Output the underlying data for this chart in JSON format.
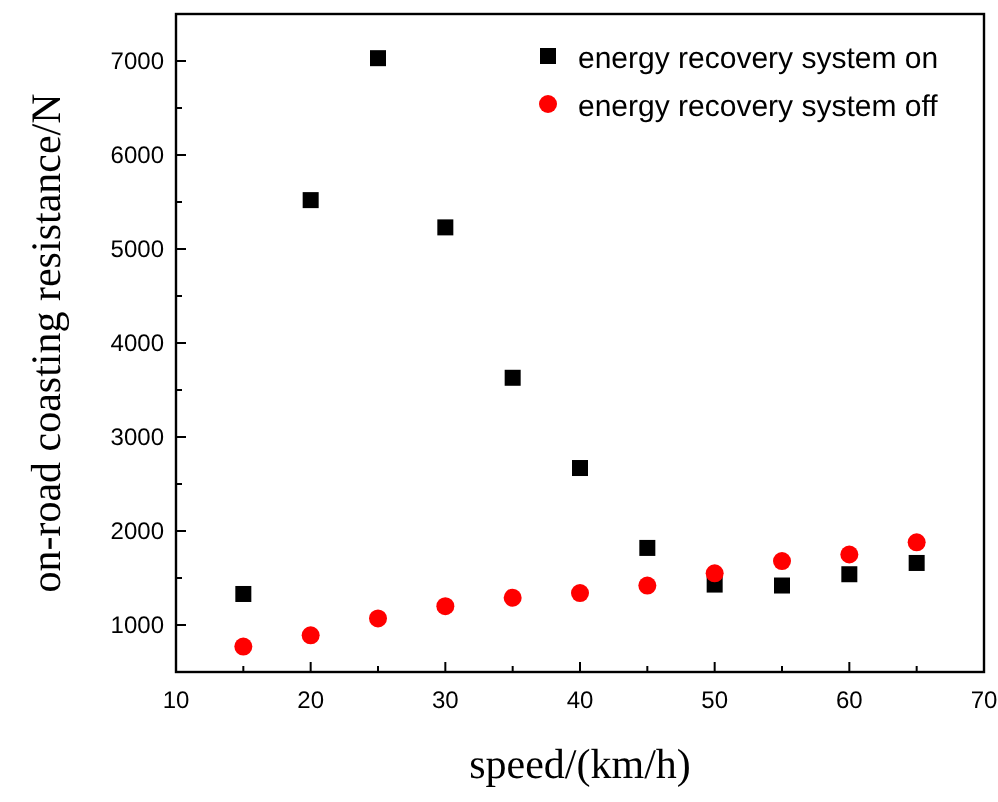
{
  "chart_data": {
    "type": "scatter",
    "xlabel": "speed/(km/h)",
    "ylabel": "on-road coasting resistance/N",
    "x": [
      15,
      20,
      25,
      30,
      35,
      40,
      45,
      50,
      55,
      60,
      65
    ],
    "series": [
      {
        "name": "energy recovery system on",
        "color": "#000000",
        "marker": "square",
        "values": [
          1330,
          5520,
          7030,
          5230,
          3630,
          2670,
          1820,
          1430,
          1420,
          1540,
          1660
        ]
      },
      {
        "name": "energy recovery system off",
        "color": "#ff0000",
        "marker": "circle",
        "values": [
          770,
          890,
          1070,
          1200,
          1290,
          1340,
          1420,
          1550,
          1680,
          1750,
          1880
        ]
      }
    ],
    "xlim": [
      10,
      70
    ],
    "xticks": [
      10,
      20,
      30,
      40,
      50,
      60,
      70
    ],
    "ylim": [
      500,
      7500
    ],
    "yticks": [
      1000,
      2000,
      3000,
      4000,
      5000,
      6000,
      7000
    ],
    "grid": false,
    "legend": "top right"
  }
}
